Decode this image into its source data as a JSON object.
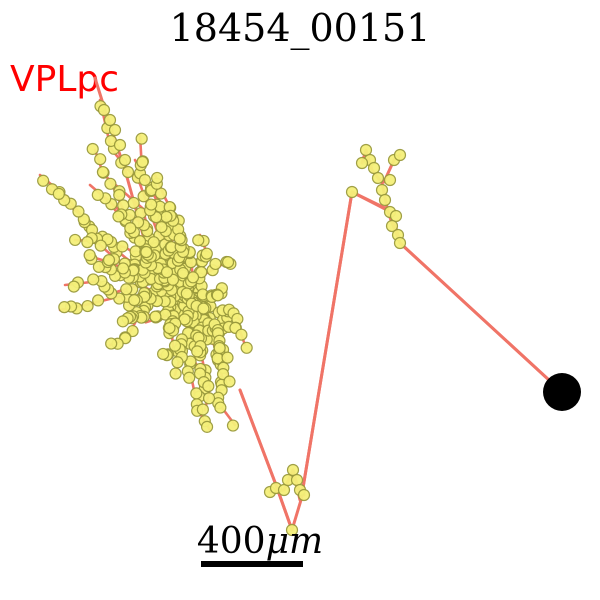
{
  "title": "18454_00151",
  "region_label": "VPLpc",
  "scale_bar": {
    "label_value": "400",
    "label_unit": "μm"
  },
  "colors": {
    "axon": "#f07467",
    "bouton_fill": "#f5f07a",
    "bouton_stroke": "#9a9a3c",
    "soma": "#000000",
    "region_label": "#ff0000"
  }
}
